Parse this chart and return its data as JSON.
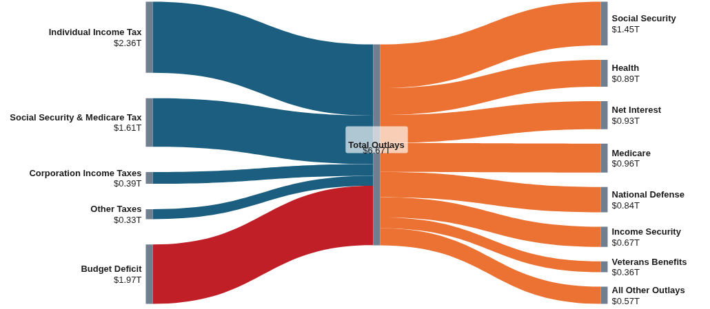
{
  "chart_data": {
    "type": "other",
    "categories": [
      "Individual Income Tax",
      "Social Security & Medicare Tax",
      "Corporation Income Taxes",
      "Other Taxes",
      "Budget Deficit",
      "Total Outlays",
      "Social Security",
      "Health",
      "Net Interest",
      "Medicare",
      "National Defense",
      "Income Security",
      "Veterans Benefits",
      "All Other Outlays"
    ],
    "series": [
      {
        "values": [
          2.36,
          1.61,
          0.39,
          0.33,
          1.97,
          null,
          null,
          null,
          null,
          null,
          null,
          null,
          null,
          null
        ],
        "colors": [
          "#1b5e80",
          "#1b5e80",
          "#1b5e80",
          "#1b5e80",
          "#c01f28",
          null,
          null,
          null,
          null,
          null,
          null,
          null,
          null,
          null
        ],
        "value_labels": [
          "$2.36T",
          "$1.61T",
          "$0.39T",
          "$0.33T",
          "$1.97T",
          null,
          null,
          null,
          null,
          null,
          null,
          null,
          null,
          null
        ]
      },
      {
        "values": [
          null,
          null,
          null,
          null,
          null,
          6.67,
          null,
          null,
          null,
          null,
          null,
          null,
          null,
          null
        ],
        "color": "#6f7f8f",
        "value_labels": [
          null,
          null,
          null,
          null,
          null,
          "$6.67T",
          null,
          null,
          null,
          null,
          null,
          null,
          null,
          null
        ]
      },
      {
        "values": [
          null,
          null,
          null,
          null,
          null,
          null,
          1.45,
          0.89,
          0.93,
          0.96,
          0.84,
          0.67,
          0.36,
          0.57
        ],
        "color": "#eb7233",
        "value_labels": [
          null,
          null,
          null,
          null,
          null,
          null,
          "$1.45T",
          "$0.89T",
          "$0.93T",
          "$0.96T",
          "$0.84T",
          "$0.67T",
          "$0.36T",
          "$0.57T"
        ]
      }
    ]
  }
}
